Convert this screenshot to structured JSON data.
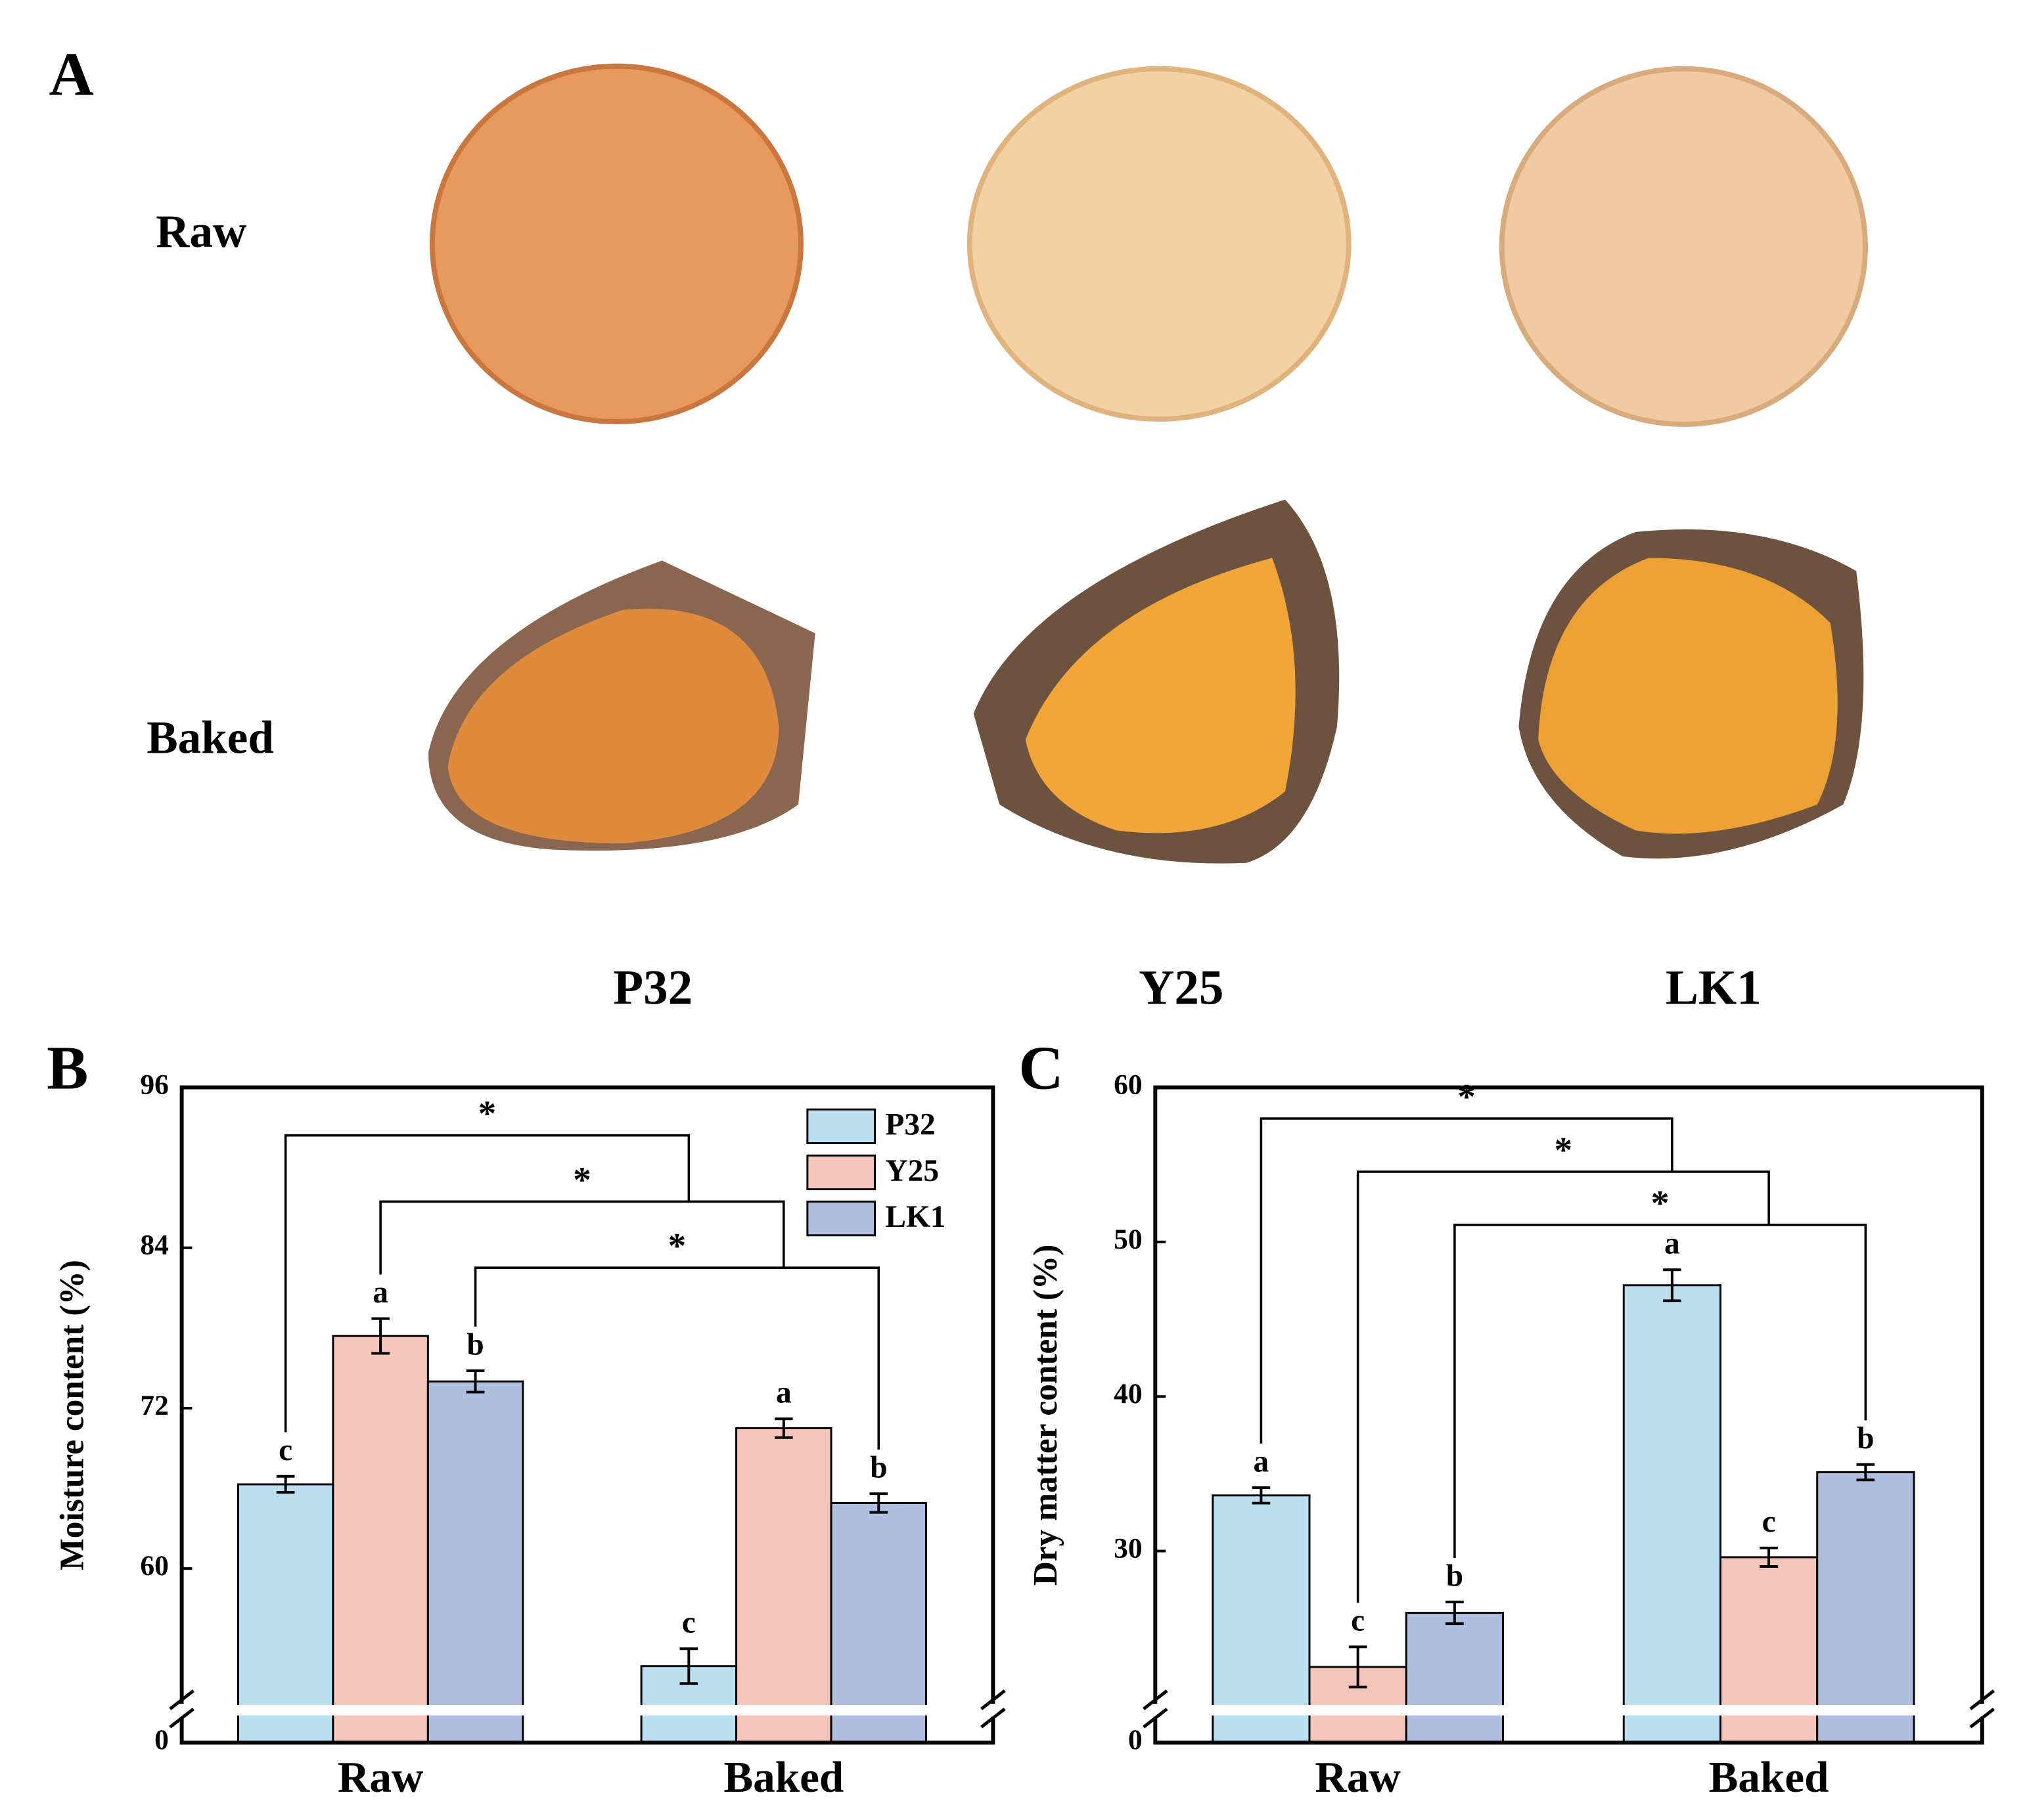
{
  "panel_a": {
    "label": "A",
    "rows": [
      "Raw",
      "Baked"
    ],
    "columns": [
      "P32",
      "Y25",
      "LK1"
    ]
  },
  "chart_data": [
    {
      "type": "bar",
      "panel": "B",
      "ylabel": "Moisture content (%)",
      "categories": [
        "Raw",
        "Baked"
      ],
      "series": [
        {
          "name": "P32",
          "color": "#bcdff0",
          "values": [
            66.3,
            52.7
          ],
          "errors": [
            0.6,
            1.3
          ],
          "letters": [
            "c",
            "c"
          ]
        },
        {
          "name": "Y25",
          "color": "#f5c4bb",
          "values": [
            77.4,
            70.5
          ],
          "errors": [
            1.3,
            0.7
          ],
          "letters": [
            "a",
            "a"
          ]
        },
        {
          "name": "LK1",
          "color": "#aebfe0",
          "values": [
            74.0,
            64.9
          ],
          "errors": [
            0.8,
            0.7
          ],
          "letters": [
            "b",
            "b"
          ]
        }
      ],
      "ylim": [
        0,
        96
      ],
      "yticks": [
        0,
        60,
        72,
        84,
        96
      ],
      "ybreak": [
        0,
        49.4
      ],
      "legend": "upper right",
      "significance": [
        "*",
        "*",
        "*"
      ]
    },
    {
      "type": "bar",
      "panel": "C",
      "ylabel": "Dry matter content (%)",
      "categories": [
        "Raw",
        "Baked"
      ],
      "series": [
        {
          "name": "P32",
          "color": "#bcdff0",
          "values": [
            33.6,
            47.2
          ],
          "errors": [
            0.5,
            1.0
          ],
          "letters": [
            "a",
            "a"
          ]
        },
        {
          "name": "Y25",
          "color": "#f5c4bb",
          "values": [
            22.5,
            29.6
          ],
          "errors": [
            1.3,
            0.6
          ],
          "letters": [
            "c",
            "c"
          ]
        },
        {
          "name": "LK1",
          "color": "#aebfe0",
          "values": [
            26.0,
            35.1
          ],
          "errors": [
            0.7,
            0.5
          ],
          "letters": [
            "b",
            "b"
          ]
        }
      ],
      "ylim": [
        0,
        60
      ],
      "yticks": [
        0,
        30,
        40,
        50,
        60
      ],
      "ybreak": [
        0,
        19.7
      ],
      "significance": [
        "*",
        "*",
        "*"
      ]
    }
  ]
}
